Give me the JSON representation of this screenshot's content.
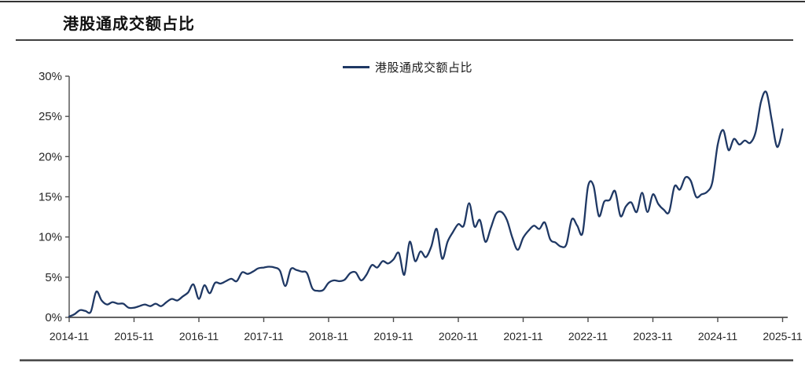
{
  "page": {
    "title": "港股通成交额占比"
  },
  "legend": {
    "label": "港股通成交额占比"
  },
  "colors": {
    "line": "#1f3864",
    "axis": "#4d4d4d",
    "tick_text": "#262626",
    "title_text": "#111111",
    "rule": "#3f3f3f"
  },
  "chart_data": {
    "type": "line",
    "title": "港股通成交额占比",
    "series_name": "港股通成交额占比",
    "unit": "percent",
    "x_start": "2014-11",
    "x_end": "2025-11",
    "x_frequency": "monthly",
    "ylim": [
      0,
      30
    ],
    "ytick_step": 5,
    "ytick_labels": [
      "0%",
      "5%",
      "10%",
      "15%",
      "20%",
      "25%",
      "30%"
    ],
    "xtick_labels": [
      "2014-11",
      "2015-11",
      "2016-11",
      "2017-11",
      "2018-11",
      "2019-11",
      "2020-11",
      "2021-11",
      "2022-11",
      "2023-11",
      "2024-11",
      "2025-11"
    ],
    "xtick_month_interval": 12,
    "legend_position": "top-center",
    "grid": false,
    "values": [
      0.1,
      0.4,
      0.9,
      0.8,
      0.7,
      3.2,
      2.1,
      1.6,
      1.9,
      1.7,
      1.7,
      1.2,
      1.2,
      1.4,
      1.6,
      1.4,
      1.7,
      1.4,
      1.9,
      2.3,
      2.1,
      2.6,
      3.1,
      4.1,
      2.3,
      4.0,
      3.0,
      4.3,
      4.2,
      4.5,
      4.8,
      4.5,
      5.6,
      5.4,
      5.7,
      6.1,
      6.2,
      6.3,
      6.2,
      5.8,
      3.9,
      6.0,
      5.9,
      5.7,
      5.5,
      3.6,
      3.3,
      3.4,
      4.3,
      4.6,
      4.5,
      4.7,
      5.5,
      5.6,
      4.6,
      5.3,
      6.5,
      6.2,
      7.0,
      6.7,
      7.2,
      8.0,
      5.3,
      9.4,
      7.0,
      8.2,
      7.5,
      8.8,
      11.0,
      7.3,
      9.4,
      10.6,
      11.6,
      11.4,
      14.2,
      11.3,
      12.1,
      9.4,
      11.1,
      12.9,
      13.1,
      12.1,
      9.9,
      8.4,
      9.9,
      10.8,
      11.4,
      11.0,
      11.8,
      9.7,
      9.3,
      8.8,
      9.1,
      12.2,
      11.4,
      10.5,
      16.3,
      16.4,
      12.6,
      14.4,
      14.6,
      15.7,
      12.6,
      13.8,
      14.3,
      13.1,
      15.5,
      13.1,
      15.3,
      14.1,
      13.4,
      13.1,
      16.3,
      15.9,
      17.4,
      17.0,
      15.0,
      15.3,
      15.6,
      16.8,
      21.5,
      23.3,
      20.8,
      22.2,
      21.5,
      22.0,
      21.7,
      23.0,
      26.8,
      28.0,
      24.5,
      21.2,
      23.4
    ]
  }
}
